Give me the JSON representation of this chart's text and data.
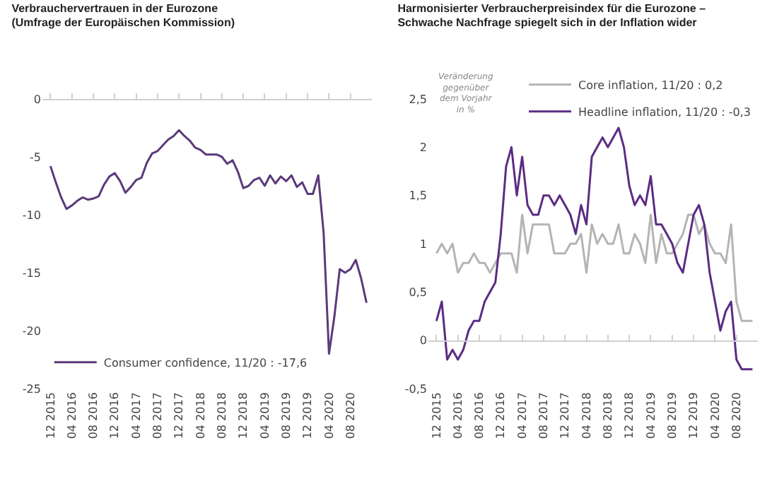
{
  "chart_data": [
    {
      "type": "line",
      "title": "Verbrauchervertrauen in der Eurozone\n(Umfrage der Europäischen Kommission)",
      "categories": [
        "12 2015",
        null,
        null,
        null,
        "04 2016",
        null,
        null,
        null,
        "08 2016",
        null,
        null,
        null,
        "12 2016",
        null,
        null,
        null,
        "04 2017",
        null,
        null,
        null,
        "08 2017",
        null,
        null,
        null,
        "12 2017",
        null,
        null,
        null,
        "04 2018",
        null,
        null,
        null,
        "08 2018",
        null,
        null,
        null,
        "12 2018",
        null,
        null,
        null,
        "04 2019",
        null,
        null,
        null,
        "08 2019",
        null,
        null,
        null,
        "12 2019",
        null,
        null,
        null,
        "04 2020",
        null,
        null,
        null,
        "08 2020",
        null,
        null,
        null
      ],
      "series": [
        {
          "name": "Consumer confidence, 11/20 : -17,6",
          "color": "#5b3a7a",
          "values": [
            -5.8,
            -7.2,
            -8.5,
            -9.5,
            -9.2,
            -8.8,
            -8.5,
            -8.7,
            -8.6,
            -8.4,
            -7.4,
            -6.7,
            -6.4,
            -7.1,
            -8.1,
            -7.6,
            -7.0,
            -6.8,
            -5.5,
            -4.7,
            -4.5,
            -4.0,
            -3.5,
            -3.2,
            -2.7,
            -3.2,
            -3.6,
            -4.2,
            -4.4,
            -4.8,
            -4.8,
            -4.8,
            -5.0,
            -5.6,
            -5.3,
            -6.3,
            -7.7,
            -7.5,
            -7.0,
            -6.8,
            -7.5,
            -6.6,
            -7.3,
            -6.7,
            -7.1,
            -6.6,
            -7.6,
            -7.2,
            -8.2,
            -8.2,
            -6.6,
            -11.6,
            -22.0,
            -18.8,
            -14.7,
            -15.0,
            -14.7,
            -13.9,
            -15.5,
            -17.6
          ]
        }
      ],
      "ref_lines": [
        {
          "axis": "y",
          "value": 0,
          "color": "#d0d0d0"
        }
      ],
      "ylim": [
        -25,
        0
      ],
      "yticks": [
        {
          "value": -25,
          "label": "-25"
        },
        {
          "value": -20,
          "label": "-20"
        },
        {
          "value": -15,
          "label": "-15"
        },
        {
          "value": -10,
          "label": "-10"
        },
        {
          "value": -5,
          "label": "-5"
        },
        {
          "value": 0,
          "label": "0"
        }
      ],
      "grid": false,
      "legend": "bottom",
      "marker": "none",
      "line_style": "solid"
    },
    {
      "type": "line",
      "title": "Harmonisierter Verbraucherpreisindex für die Eurozone –\nSchwache Nachfrage spiegelt sich in der Inflation wider",
      "categories": [
        "12 2015",
        null,
        null,
        null,
        "04 2016",
        null,
        null,
        null,
        "08 2016",
        null,
        null,
        null,
        "12 2016",
        null,
        null,
        null,
        "04 2017",
        null,
        null,
        null,
        "08 2017",
        null,
        null,
        null,
        "12 2017",
        null,
        null,
        null,
        "04 2018",
        null,
        null,
        null,
        "08 2018",
        null,
        null,
        null,
        "12 2018",
        null,
        null,
        null,
        "04 2019",
        null,
        null,
        null,
        "08 2019",
        null,
        null,
        null,
        "12 2019",
        null,
        null,
        null,
        "04 2020",
        null,
        null,
        null,
        "08 2020",
        null,
        null,
        null
      ],
      "series": [
        {
          "name": "Core inflation, 11/20 : 0,2",
          "color": "#b4b4b4",
          "values": [
            0.9,
            1.0,
            0.9,
            1.0,
            0.7,
            0.8,
            0.8,
            0.9,
            0.8,
            0.8,
            0.7,
            0.8,
            0.9,
            0.9,
            0.9,
            0.7,
            1.3,
            0.9,
            1.2,
            1.2,
            1.2,
            1.2,
            0.9,
            0.9,
            0.9,
            1.0,
            1.0,
            1.1,
            0.7,
            1.2,
            1.0,
            1.1,
            1.0,
            1.0,
            1.2,
            0.9,
            0.9,
            1.1,
            1.0,
            0.8,
            1.3,
            0.8,
            1.1,
            0.9,
            0.9,
            1.0,
            1.1,
            1.3,
            1.3,
            1.1,
            1.2,
            1.0,
            0.9,
            0.9,
            0.8,
            1.2,
            0.4,
            0.2,
            0.2,
            0.2
          ]
        },
        {
          "name": "Headline inflation, 11/20 : -0,3",
          "color": "#5b2c83",
          "values": [
            0.2,
            0.4,
            -0.2,
            -0.1,
            -0.2,
            -0.1,
            0.1,
            0.2,
            0.2,
            0.4,
            0.5,
            0.6,
            1.1,
            1.8,
            2.0,
            1.5,
            1.9,
            1.4,
            1.3,
            1.3,
            1.5,
            1.5,
            1.4,
            1.5,
            1.4,
            1.3,
            1.1,
            1.4,
            1.2,
            1.9,
            2.0,
            2.1,
            2.0,
            2.1,
            2.2,
            2.0,
            1.6,
            1.4,
            1.5,
            1.4,
            1.7,
            1.2,
            1.2,
            1.1,
            1.0,
            0.8,
            0.7,
            1.0,
            1.3,
            1.4,
            1.2,
            0.7,
            0.4,
            0.1,
            0.3,
            0.4,
            -0.2,
            -0.3,
            -0.3,
            -0.3
          ]
        }
      ],
      "ref_lines": [
        {
          "axis": "y",
          "value": 0,
          "color": "#d0d0d0"
        }
      ],
      "ylim": [
        -0.5,
        2.5
      ],
      "yticks": [
        {
          "value": -0.5,
          "label": "-0,5"
        },
        0,
        {
          "value": 0.5,
          "label": "0,5"
        },
        1,
        {
          "value": 1.5,
          "label": "1,5"
        },
        2,
        {
          "value": 2.5,
          "label": "2,5"
        }
      ],
      "grid": false,
      "legend": "top right",
      "marker": "none",
      "line_style": "solid",
      "annotations": [
        "Veränderung\ngegenüber\ndem Vorjahr\nin %"
      ]
    }
  ]
}
